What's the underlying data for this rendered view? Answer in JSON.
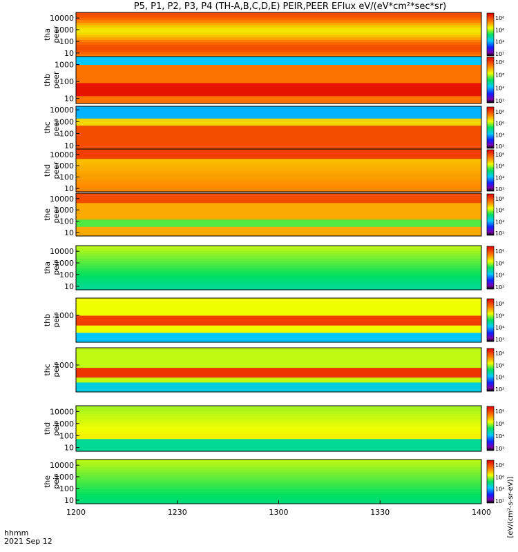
{
  "title": "P5, P1, P2, P3, P4 (TH-A,B,C,D,E) PEIR,PEER EFlux eV/(eV*cm²*sec*sr)",
  "chart_data": {
    "type": "heatmap",
    "title": "P5, P1, P2, P3, P4 (TH-A,B,C,D,E) PEIR,PEER EFlux eV/(eV*cm²*sec*sr)",
    "x_axis": {
      "label_line1": "hhmm",
      "label_line2": "2021 Sep 12",
      "ticks": [
        "1200",
        "1230",
        "1300",
        "1330",
        "1400"
      ],
      "range_minutes": [
        0,
        120
      ]
    },
    "colorbar_label": "[eV/(cm²-s-sr-eV)]",
    "colorbar_ticks": [
      "10⁸",
      "10⁶",
      "10⁴",
      "10²"
    ],
    "panels": [
      {
        "name": "tha peer",
        "label_line1": "tha",
        "label_line2": "peer",
        "y_scale": "log",
        "y_ticks": [
          "10",
          "100",
          "1000",
          "10000"
        ],
        "y_range": [
          5,
          30000
        ],
        "colorbar_ticks": [
          "10⁸",
          "10⁶",
          "10⁴",
          "10²"
        ]
      },
      {
        "name": "thb peer",
        "label_line1": "thb",
        "label_line2": "peer",
        "y_scale": "log",
        "y_ticks": [
          "10",
          "100",
          "1000"
        ],
        "y_range": [
          5,
          3000
        ],
        "colorbar_ticks": [
          "10⁸",
          "10⁶",
          "10⁴",
          "10²"
        ]
      },
      {
        "name": "thc peer",
        "label_line1": "thc",
        "label_line2": "peer",
        "y_scale": "log",
        "y_ticks": [
          "10",
          "100",
          "1000",
          "10000"
        ],
        "y_range": [
          5,
          20000
        ],
        "colorbar_ticks": [
          "10⁸",
          "10⁶",
          "10⁴",
          "10²"
        ]
      },
      {
        "name": "thd peer",
        "label_line1": "thd",
        "label_line2": "peer",
        "y_scale": "log",
        "y_ticks": [
          "10",
          "100",
          "1000",
          "10000"
        ],
        "y_range": [
          5,
          30000
        ],
        "colorbar_ticks": [
          "10⁸",
          "10⁶",
          "10⁴",
          "10²"
        ]
      },
      {
        "name": "the peer",
        "label_line1": "the",
        "label_line2": "peer",
        "y_scale": "log",
        "y_ticks": [
          "10",
          "100",
          "1000",
          "10000"
        ],
        "y_range": [
          5,
          30000
        ],
        "colorbar_ticks": [
          "10⁸",
          "10⁶",
          "10⁴",
          "10²"
        ]
      },
      {
        "name": "tha peir",
        "label_line1": "tha",
        "label_line2": "peir",
        "y_scale": "log",
        "y_ticks": [
          "10",
          "100",
          "1000",
          "10000"
        ],
        "y_range": [
          5,
          30000
        ],
        "colorbar_ticks": [
          "10⁸",
          "10⁶",
          "10⁴",
          "10²"
        ]
      },
      {
        "name": "thb peir",
        "label_line1": "thb",
        "label_line2": "peir",
        "y_scale": "log",
        "y_ticks": [
          "1000"
        ],
        "y_range": [
          5,
          30000
        ],
        "colorbar_ticks": [
          "10⁸",
          "10⁶",
          "10⁴",
          "10²"
        ]
      },
      {
        "name": "thc peir",
        "label_line1": "thc",
        "label_line2": "peir",
        "y_scale": "log",
        "y_ticks": [
          "1000"
        ],
        "y_range": [
          5,
          30000
        ],
        "colorbar_ticks": [
          "10⁸",
          "10⁶",
          "10⁴",
          "10²"
        ]
      },
      {
        "name": "thd peir",
        "label_line1": "thd",
        "label_line2": "peir",
        "y_scale": "log",
        "y_ticks": [
          "10",
          "100",
          "1000",
          "10000"
        ],
        "y_range": [
          5,
          30000
        ],
        "colorbar_ticks": [
          "10⁸",
          "10⁶",
          "10⁴",
          "10²"
        ]
      },
      {
        "name": "the peir",
        "label_line1": "the",
        "label_line2": "peir",
        "y_scale": "log",
        "y_ticks": [
          "10",
          "100",
          "1000",
          "10000"
        ],
        "y_range": [
          5,
          30000
        ],
        "colorbar_ticks": [
          "10⁸",
          "10⁶",
          "10⁴",
          "10²"
        ]
      }
    ]
  }
}
